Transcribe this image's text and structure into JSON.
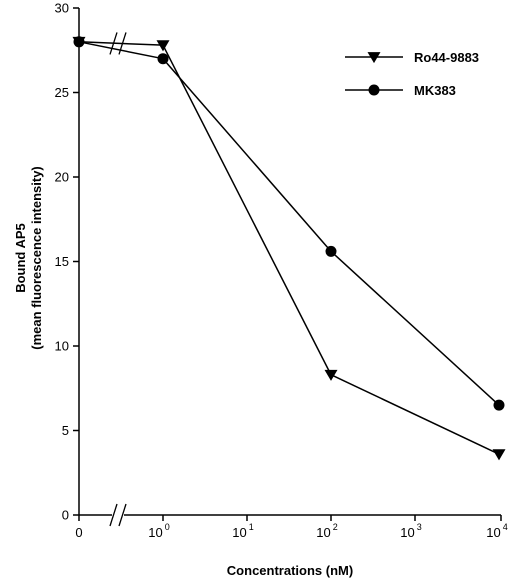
{
  "chart_data": {
    "type": "line",
    "xlabel": "Concentrations (nM)",
    "ylabel": [
      "Bound AP5",
      "(mean fluorescence intensity)"
    ],
    "ylim": [
      0,
      30
    ],
    "y_ticks": [
      "0",
      "5",
      "10",
      "15",
      "20",
      "25",
      "30"
    ],
    "x_scale": "log with broken axis segment at 0",
    "x_ticks": [
      {
        "base": "0",
        "exp": ""
      },
      {
        "base": "10",
        "exp": "0"
      },
      {
        "base": "10",
        "exp": "1"
      },
      {
        "base": "10",
        "exp": "2"
      },
      {
        "base": "10",
        "exp": "3"
      },
      {
        "base": "10",
        "exp": "4"
      }
    ],
    "axis_break": true,
    "grid": false,
    "legend_position": "top-right",
    "series": [
      {
        "name": "Ro44-9883",
        "marker": "triangle-down",
        "points": [
          {
            "x": 0,
            "y": 28.0
          },
          {
            "x": 1,
            "y": 27.8
          },
          {
            "x": 100,
            "y": 8.3
          },
          {
            "x": 10000,
            "y": 3.6
          }
        ]
      },
      {
        "name": "MK383",
        "marker": "circle",
        "points": [
          {
            "x": 0,
            "y": 28.0
          },
          {
            "x": 1,
            "y": 27.0
          },
          {
            "x": 100,
            "y": 15.6
          },
          {
            "x": 10000,
            "y": 6.5
          }
        ]
      }
    ]
  }
}
